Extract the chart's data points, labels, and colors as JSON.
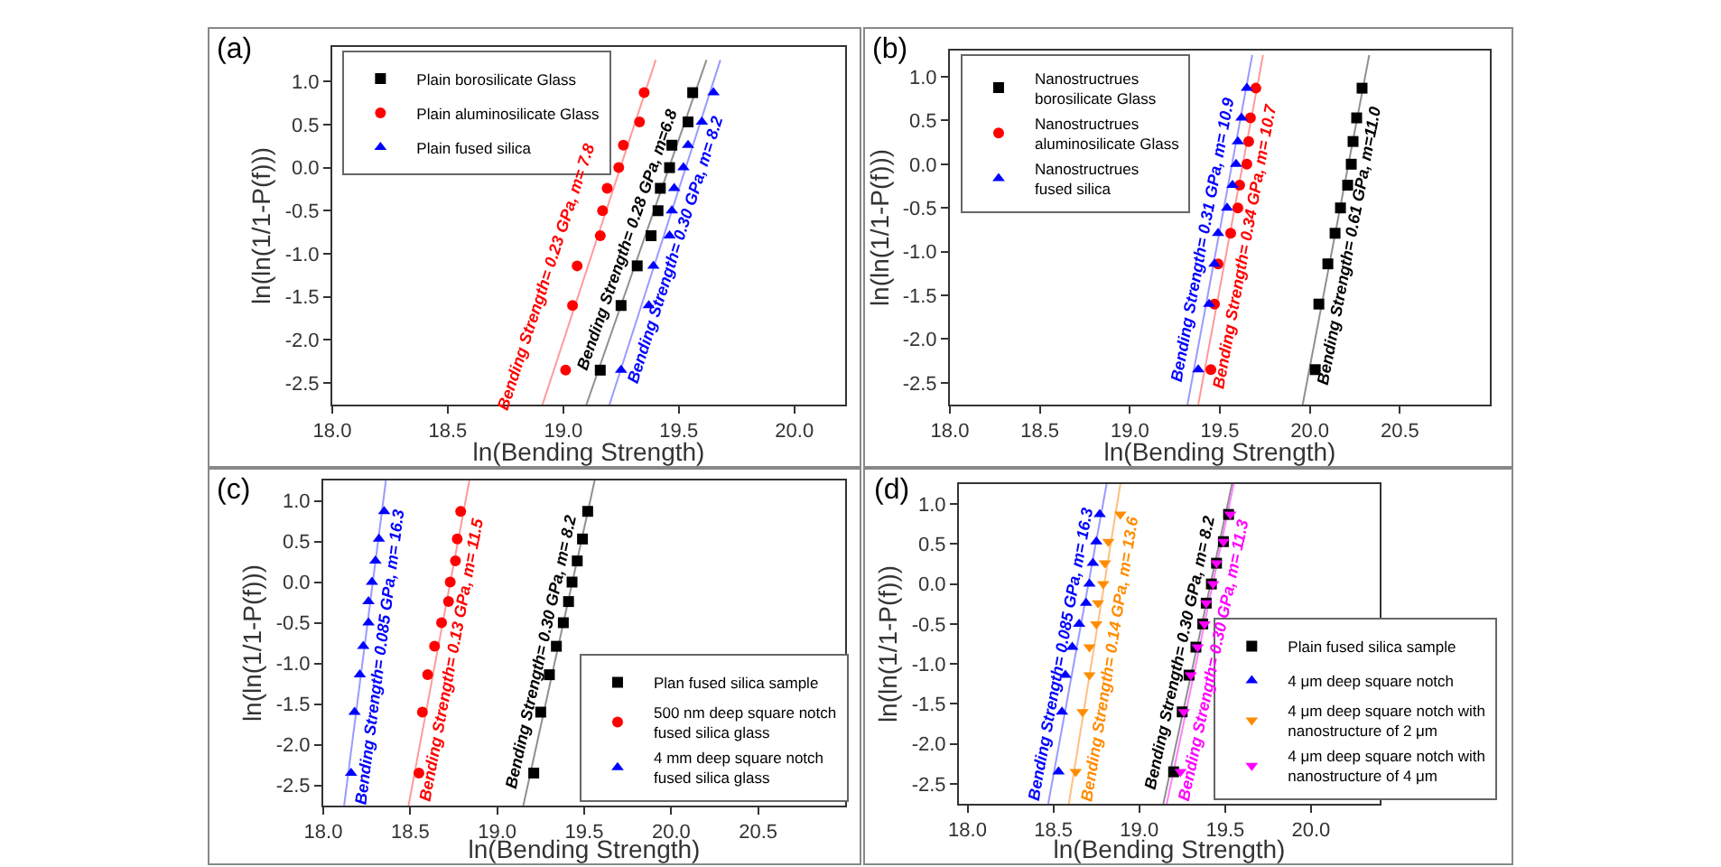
{
  "chart_data": [
    {
      "type": "scatter",
      "xlabel": "ln(Bending Strength)",
      "ylabel": "ln(ln(1/1-P(f)))",
      "xlim": [
        18,
        20.22
      ],
      "ylim": [
        -2.75,
        1.4
      ],
      "legend": "top left",
      "xticks": [
        {
          "value": 18,
          "label": "18.0"
        },
        18.5,
        {
          "value": 19,
          "label": "19.0"
        },
        19.5,
        {
          "value": 20,
          "label": "20.0"
        }
      ],
      "yticks": [
        -2.5,
        {
          "value": -2,
          "label": "-2.0"
        },
        -1.5,
        {
          "value": -1,
          "label": "-1.0"
        },
        -0.5,
        {
          "value": 0,
          "label": "0.0"
        },
        0.5,
        {
          "value": 1,
          "label": "1.0"
        }
      ],
      "series": [
        {
          "name": "Plain borosilicate Glass",
          "color": "#000000",
          "marker": "square",
          "x": [
            19.16,
            19.25,
            19.32,
            19.38,
            19.41,
            19.42,
            19.46,
            19.47,
            19.54,
            19.56
          ],
          "values": [
            -2.35,
            -1.6,
            -1.14,
            -0.79,
            -0.5,
            -0.24,
            0.0,
            0.26,
            0.53,
            0.87
          ]
        },
        {
          "name": "Plain aluminosilicate Glass",
          "color": "#ff0000",
          "marker": "circle",
          "x": [
            19.01,
            19.04,
            19.06,
            19.16,
            19.17,
            19.19,
            19.24,
            19.26,
            19.33,
            19.35
          ],
          "values": [
            -2.35,
            -1.6,
            -1.14,
            -0.79,
            -0.5,
            -0.24,
            0.0,
            0.26,
            0.53,
            0.87
          ]
        },
        {
          "name": "Plain fused silica",
          "color": "#0000ff",
          "marker": "triangle",
          "x": [
            19.25,
            19.37,
            19.39,
            19.46,
            19.47,
            19.48,
            19.52,
            19.54,
            19.6,
            19.65
          ],
          "values": [
            -2.35,
            -1.6,
            -1.14,
            -0.79,
            -0.5,
            -0.24,
            0.0,
            0.26,
            0.53,
            0.87
          ]
        },
        {
          "type": "line",
          "color": "#909090",
          "x": [
            19.1,
            19.62
          ],
          "values": [
            -2.75,
            1.25
          ]
        },
        {
          "type": "line",
          "color": "#ff9a9a",
          "x": [
            18.91,
            19.4
          ],
          "values": [
            -2.75,
            1.25
          ]
        },
        {
          "type": "line",
          "color": "#9a9aff",
          "x": [
            19.2,
            19.68
          ],
          "values": [
            -2.75,
            1.25
          ]
        }
      ],
      "annotations": [
        "(a)",
        {
          "text": "Bending Strength= 0.28 GPa, m=6.8",
          "x": 19.34,
          "y": -0.9
        },
        {
          "text": "Bending Strength= 0.23 GPa, m= 7.8",
          "x": 19.08,
          "y": -1.4
        },
        {
          "text": "Bending Strength= 0.30 GPa, m= 8.2",
          "x": 19.42,
          "y": -0.9
        }
      ]
    },
    {
      "type": "scatter",
      "xlabel": "ln(Bending Strength)",
      "ylabel": "ln(ln(1/1-P(f)))",
      "xlim": [
        18,
        21
      ],
      "ylim": [
        -2.75,
        1.3
      ],
      "legend": "top left",
      "xticks": [
        {
          "value": 18,
          "label": "18.0"
        },
        18.5,
        {
          "value": 19,
          "label": "19.0"
        },
        19.5,
        {
          "value": 20,
          "label": "20.0"
        },
        20.5
      ],
      "yticks": [
        -2.5,
        {
          "value": -2,
          "label": "-2.0"
        },
        -1.5,
        {
          "value": -1,
          "label": "-1.0"
        },
        -0.5,
        {
          "value": 0,
          "label": "0.0"
        },
        0.5,
        {
          "value": 1,
          "label": "1.0"
        }
      ],
      "series": [
        {
          "name": "Nanostructrues\nborosilicate Glass",
          "color": "#000000",
          "marker": "square",
          "x": [
            20.03,
            20.05,
            20.1,
            20.14,
            20.17,
            20.21,
            20.23,
            20.24,
            20.26,
            20.29
          ],
          "values": [
            -2.35,
            -1.6,
            -1.14,
            -0.79,
            -0.5,
            -0.24,
            0.0,
            0.26,
            0.53,
            0.87
          ]
        },
        {
          "name": "Nanostructrues\naluminosilicate Glass",
          "color": "#ff0000",
          "marker": "circle",
          "x": [
            19.45,
            19.47,
            19.49,
            19.56,
            19.6,
            19.61,
            19.65,
            19.66,
            19.67,
            19.7
          ],
          "values": [
            -2.35,
            -1.6,
            -1.14,
            -0.79,
            -0.5,
            -0.24,
            0.0,
            0.26,
            0.53,
            0.87
          ]
        },
        {
          "name": "Nanostructrues\nfused silica",
          "color": "#0000ff",
          "marker": "triangle",
          "x": [
            19.38,
            19.44,
            19.47,
            19.49,
            19.54,
            19.57,
            19.59,
            19.6,
            19.62,
            19.65
          ],
          "values": [
            -2.35,
            -1.6,
            -1.14,
            -0.79,
            -0.5,
            -0.24,
            0.0,
            0.26,
            0.53,
            0.87
          ]
        },
        {
          "type": "line",
          "color": "#909090",
          "x": [
            19.96,
            20.33
          ],
          "values": [
            -2.75,
            1.25
          ]
        },
        {
          "type": "line",
          "color": "#ff9a9a",
          "x": [
            19.38,
            19.74
          ],
          "values": [
            -2.75,
            1.25
          ]
        },
        {
          "type": "line",
          "color": "#9a9aff",
          "x": [
            19.32,
            19.68
          ],
          "values": [
            -2.75,
            1.25
          ]
        }
      ],
      "annotations": [
        "(b)",
        {
          "text": "Bending Strength= 0.61 GPa, m=11.0",
          "x": 20.13,
          "y": -0.9
        },
        {
          "text": "Bending Strength= 0.34 GPa, m= 10.7",
          "x": 19.55,
          "y": -0.9
        },
        {
          "text": "Bending Strength= 0.31 GPa, m= 10.9",
          "x": 19.49,
          "y": -0.9
        }
      ]
    },
    {
      "type": "scatter",
      "xlabel": "ln(Bending Strength)",
      "ylabel": "ln(ln(1/1-P(f)))",
      "xlim": [
        18,
        21
      ],
      "ylim": [
        -2.75,
        1.25
      ],
      "legend": "bottom right",
      "xticks": [
        {
          "value": 18,
          "label": "18.0"
        },
        18.5,
        {
          "value": 19,
          "label": "19.0"
        },
        19.5,
        {
          "value": 20,
          "label": "20.0"
        },
        20.5
      ],
      "yticks": [
        -2.5,
        {
          "value": -2,
          "label": "-2.0"
        },
        -1.5,
        {
          "value": -1,
          "label": "-1.0"
        },
        -0.5,
        {
          "value": 0,
          "label": "0.0"
        },
        0.5,
        {
          "value": 1,
          "label": "1.0"
        }
      ],
      "series": [
        {
          "name": "Plan fused silica sample",
          "color": "#000000",
          "marker": "square",
          "x": [
            19.21,
            19.25,
            19.3,
            19.34,
            19.38,
            19.41,
            19.43,
            19.46,
            19.49,
            19.52
          ],
          "values": [
            -2.35,
            -1.6,
            -1.14,
            -0.79,
            -0.5,
            -0.24,
            0.0,
            0.26,
            0.53,
            0.87
          ]
        },
        {
          "name": "500 nm deep square notch\nfused silica glass",
          "color": "#ff0000",
          "marker": "circle",
          "x": [
            18.55,
            18.57,
            18.6,
            18.64,
            18.68,
            18.72,
            18.73,
            18.76,
            18.77,
            18.79
          ],
          "values": [
            -2.35,
            -1.6,
            -1.14,
            -0.79,
            -0.5,
            -0.24,
            0.0,
            0.26,
            0.53,
            0.87
          ]
        },
        {
          "name": "4 mm deep square notch\nfused silica glass",
          "color": "#0000ff",
          "marker": "triangle",
          "x": [
            18.16,
            18.18,
            18.21,
            18.23,
            18.26,
            18.26,
            18.28,
            18.3,
            18.32,
            18.35
          ],
          "values": [
            -2.35,
            -1.6,
            -1.14,
            -0.79,
            -0.5,
            -0.24,
            0.0,
            0.26,
            0.53,
            0.87
          ]
        },
        {
          "type": "line",
          "color": "#909090",
          "x": [
            19.15,
            19.56
          ],
          "values": [
            -2.75,
            1.25
          ]
        },
        {
          "type": "line",
          "color": "#ff9a9a",
          "x": [
            18.49,
            18.84
          ],
          "values": [
            -2.75,
            1.25
          ]
        },
        {
          "type": "line",
          "color": "#9a9aff",
          "x": [
            18.12,
            18.36
          ],
          "values": [
            -2.75,
            1.25
          ]
        }
      ],
      "annotations": [
        "(c)",
        {
          "text": "Bending Strength= 0.30 GPa, m= 8.2",
          "x": 19.34,
          "y": -0.9
        },
        {
          "text": "Bending Strength= 0.13 GPa, m= 11.5",
          "x": 18.65,
          "y": -0.9
        },
        {
          "text": "Bending Strength= 0.085 GPa, m= 16.3",
          "x": 18.23,
          "y": -0.9
        }
      ]
    },
    {
      "type": "scatter",
      "xlabel": "ln(Bending Strength)",
      "ylabel": "ln(ln(1/1-P(f)))",
      "xlim": [
        17.95,
        20.4
      ],
      "ylim": [
        -2.75,
        1.25
      ],
      "legend": "bottom right",
      "xticks": [
        {
          "value": 18,
          "label": "18.0"
        },
        18.5,
        {
          "value": 19,
          "label": "19.0"
        },
        19.5,
        {
          "value": 20,
          "label": "20.0"
        }
      ],
      "yticks": [
        -2.5,
        {
          "value": -2,
          "label": "-2.0"
        },
        -1.5,
        {
          "value": -1,
          "label": "-1.0"
        },
        -0.5,
        {
          "value": 0,
          "label": "0.0"
        },
        0.5,
        {
          "value": 1,
          "label": "1.0"
        }
      ],
      "series": [
        {
          "name": "Plain fused silica sample",
          "color": "#000000",
          "marker": "square",
          "x": [
            19.2,
            19.25,
            19.29,
            19.33,
            19.37,
            19.39,
            19.42,
            19.45,
            19.49,
            19.52
          ],
          "values": [
            -2.35,
            -1.6,
            -1.14,
            -0.79,
            -0.5,
            -0.24,
            0.0,
            0.26,
            0.53,
            0.87
          ]
        },
        {
          "name": "4 μm deep square notch",
          "color": "#0000ff",
          "marker": "triangle",
          "x": [
            18.53,
            18.55,
            18.57,
            18.61,
            18.65,
            18.69,
            18.71,
            18.73,
            18.75,
            18.77
          ],
          "values": [
            -2.35,
            -1.6,
            -1.14,
            -0.79,
            -0.5,
            -0.24,
            0.0,
            0.26,
            0.53,
            0.87
          ]
        },
        {
          "name": "4 μm deep square notch with\nnanostructure of 2 μm",
          "color": "#ff8c00",
          "marker": "triangle-down",
          "x": [
            18.63,
            18.67,
            18.71,
            18.71,
            18.75,
            18.76,
            18.79,
            18.8,
            18.82,
            18.89
          ],
          "values": [
            -2.35,
            -1.6,
            -1.14,
            -0.79,
            -0.5,
            -0.24,
            0.0,
            0.26,
            0.53,
            0.87
          ]
        },
        {
          "name": "4 μm deep square notch with\nnanostructure of 4 μm",
          "color": "#ff00ff",
          "marker": "triangle-down",
          "x": [
            19.24,
            19.26,
            19.3,
            19.34,
            19.38,
            19.39,
            19.43,
            19.45,
            19.49,
            19.53
          ],
          "values": [
            -2.35,
            -1.6,
            -1.14,
            -0.79,
            -0.5,
            -0.24,
            0.0,
            0.26,
            0.53,
            0.87
          ]
        },
        {
          "type": "line",
          "color": "#909090",
          "x": [
            19.14,
            19.54
          ],
          "values": [
            -2.75,
            1.25
          ]
        },
        {
          "type": "line",
          "color": "#9a9aff",
          "x": [
            18.47,
            18.81
          ],
          "values": [
            -2.75,
            1.25
          ]
        },
        {
          "type": "line",
          "color": "#ffc080",
          "x": [
            18.59,
            18.89
          ],
          "values": [
            -2.75,
            1.25
          ]
        },
        {
          "type": "line",
          "color": "#ff80ff",
          "x": [
            19.16,
            19.55
          ],
          "values": [
            -2.75,
            1.25
          ]
        }
      ],
      "annotations": [
        "(d)",
        {
          "text": "Bending Strength= 0.30 GPa, m= 8.2",
          "x": 19.33,
          "y": -0.9
        },
        {
          "text": "Bending Strength= 0.085 GPa, m= 16.3",
          "x": 18.63,
          "y": -0.9
        },
        {
          "text": "Bending Strength= 0.14 GPa, m= 13.6",
          "x": 18.73,
          "y": -0.9
        },
        {
          "text": "Bending Strength= 0.30 GPa, m= 11.3",
          "x": 19.34,
          "y": -0.9
        }
      ]
    }
  ]
}
